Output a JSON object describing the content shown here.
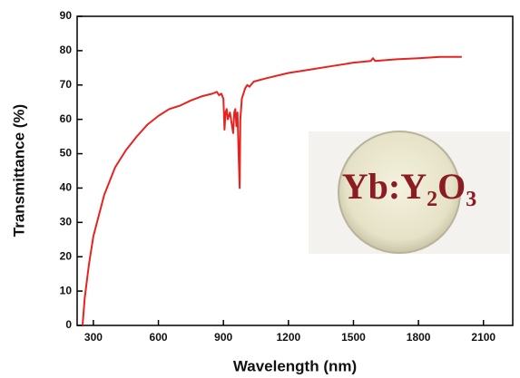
{
  "chart_data": {
    "type": "line",
    "x_label": "Wavelength (nm)",
    "y_label": "Transmittance (%)",
    "annotation": "Yb:Y₂O₃",
    "color": "#e8231f",
    "x": [
      250,
      260,
      280,
      300,
      350,
      400,
      450,
      500,
      550,
      600,
      650,
      700,
      750,
      800,
      850,
      870,
      880,
      890,
      900,
      905,
      910,
      915,
      920,
      930,
      940,
      945,
      950,
      955,
      960,
      965,
      970,
      975,
      978,
      985,
      1000,
      1010,
      1020,
      1040,
      1100,
      1200,
      1300,
      1400,
      1500,
      1580,
      1590,
      1600,
      1700,
      1800,
      1900,
      2000
    ],
    "values": [
      0,
      8,
      18,
      26,
      38,
      46,
      51,
      55,
      58.5,
      61,
      63,
      64,
      65.5,
      66.7,
      67.5,
      68,
      67,
      67.5,
      66,
      57,
      62,
      63,
      60,
      62,
      58,
      56,
      62,
      63,
      58,
      62,
      50,
      40,
      60,
      66,
      69,
      70,
      69.5,
      71,
      72,
      73.5,
      74.5,
      75.5,
      76.5,
      77,
      77.8,
      77,
      77.5,
      77.8,
      78.2,
      78.2
    ],
    "xlim": [
      225,
      2235
    ],
    "ylim": [
      0,
      90
    ],
    "xticks": [
      300,
      600,
      900,
      1200,
      1500,
      1800,
      2100
    ],
    "yticks": [
      0,
      10,
      20,
      30,
      40,
      50,
      60,
      70,
      80,
      90
    ]
  }
}
